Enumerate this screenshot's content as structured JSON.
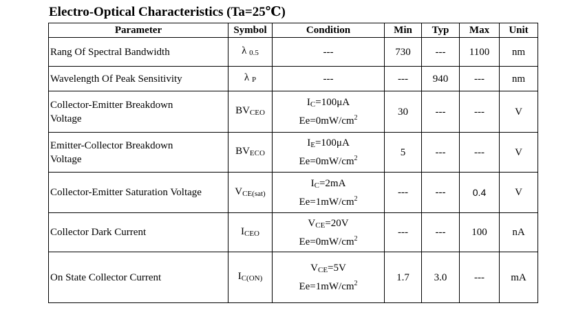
{
  "title": "Electro-Optical Characteristics (Ta=25℃)",
  "headers": [
    "Parameter",
    "Symbol",
    "Condition",
    "Min",
    "Typ",
    "Max",
    "Unit"
  ],
  "rows": [
    {
      "parameter": "Rang Of Spectral Bandwidth",
      "symbol": {
        "base": "λ ",
        "sub": "0.5"
      },
      "condition": {
        "line1": "---"
      },
      "min": "730",
      "typ": "---",
      "max": "1100",
      "unit": "nm"
    },
    {
      "parameter": "Wavelength Of Peak Sensitivity",
      "symbol": {
        "base": "λ ",
        "sub": "P"
      },
      "condition": {
        "line1": "---"
      },
      "min": "---",
      "typ": "940",
      "max": "---",
      "unit": "nm"
    },
    {
      "parameter": "Collector-Emitter Breakdown Voltage",
      "symbol": {
        "base": "BV",
        "sub": "CEO"
      },
      "condition": {
        "line1": "I",
        "line1_sub": "C",
        "line1_rest": "=100μA",
        "line2": "Ee=0mW/cm",
        "line2_sup": "2"
      },
      "min": "30",
      "typ": "---",
      "max": "---",
      "unit": "V"
    },
    {
      "parameter": "Emitter-Collector Breakdown Voltage",
      "symbol": {
        "base": "BV",
        "sub": "ECO"
      },
      "condition": {
        "line1": "I",
        "line1_sub": "E",
        "line1_rest": "=100μA",
        "line2": "Ee=0mW/cm",
        "line2_sup": "2"
      },
      "min": "5",
      "typ": "---",
      "max": "---",
      "unit": "V"
    },
    {
      "parameter": "Collector-Emitter Saturation Voltage",
      "symbol": {
        "base": "V",
        "sub": "CE(sat)"
      },
      "condition": {
        "line1": "I",
        "line1_sub": "C",
        "line1_rest": "=2mA",
        "line2": "Ee=1mW/cm",
        "line2_sup": "2"
      },
      "min": "---",
      "typ": "---",
      "max": "0.4",
      "unit": "V"
    },
    {
      "parameter": "Collector Dark Current",
      "symbol": {
        "base": "I",
        "sub": "CEO"
      },
      "condition": {
        "line1": "V",
        "line1_sub": "CE",
        "line1_rest": "=20V",
        "line2": "Ee=0mW/cm",
        "line2_sup": "2"
      },
      "min": "---",
      "typ": "---",
      "max": "100",
      "unit": "nA"
    },
    {
      "parameter": "On State Collector Current",
      "symbol": {
        "base": "I",
        "sub": "C(ON)"
      },
      "condition": {
        "line1": "V",
        "line1_sub": "CE",
        "line1_rest": "=5V",
        "line2": "Ee=1mW/cm",
        "line2_sup": "2"
      },
      "min": "1.7",
      "typ": "3.0",
      "max": "---",
      "unit": "mA"
    }
  ]
}
